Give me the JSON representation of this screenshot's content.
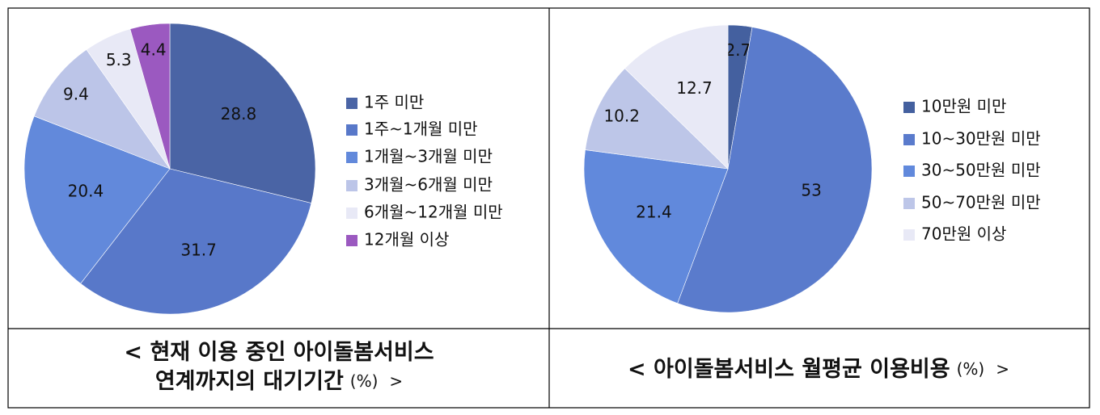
{
  "chart_data": [
    {
      "type": "pie",
      "title": [
        "< 현재 이용 중인 아이돌봄서비스",
        "연계까지의 대기기간"
      ],
      "unit": "(%)",
      "title_end": ">",
      "categories": [
        "1주 미만",
        "1주~1개월 미만",
        "1개월~3개월 미만",
        "3개월~6개월 미만",
        "6개월~12개월 미만",
        "12개월 이상"
      ],
      "values": [
        28.8,
        31.7,
        20.4,
        9.4,
        5.3,
        4.4
      ],
      "colors": [
        "#4a64a5",
        "#5878c9",
        "#6289db",
        "#bcc5e8",
        "#e8e9f6",
        "#9b59c0"
      ]
    },
    {
      "type": "pie",
      "title": [
        "< 아이돌봄서비스 월평균 이용비용"
      ],
      "unit": "(%)",
      "title_end": ">",
      "categories": [
        "10만원 미만",
        "10~30만원 미만",
        "30~50만원 미만",
        "50~70만원 미만",
        "70만원 이상"
      ],
      "values": [
        2.7,
        53,
        21.4,
        10.2,
        12.7
      ],
      "colors": [
        "#44609f",
        "#5a7bcc",
        "#6189dc",
        "#bdc6e8",
        "#e8e9f6"
      ]
    }
  ]
}
